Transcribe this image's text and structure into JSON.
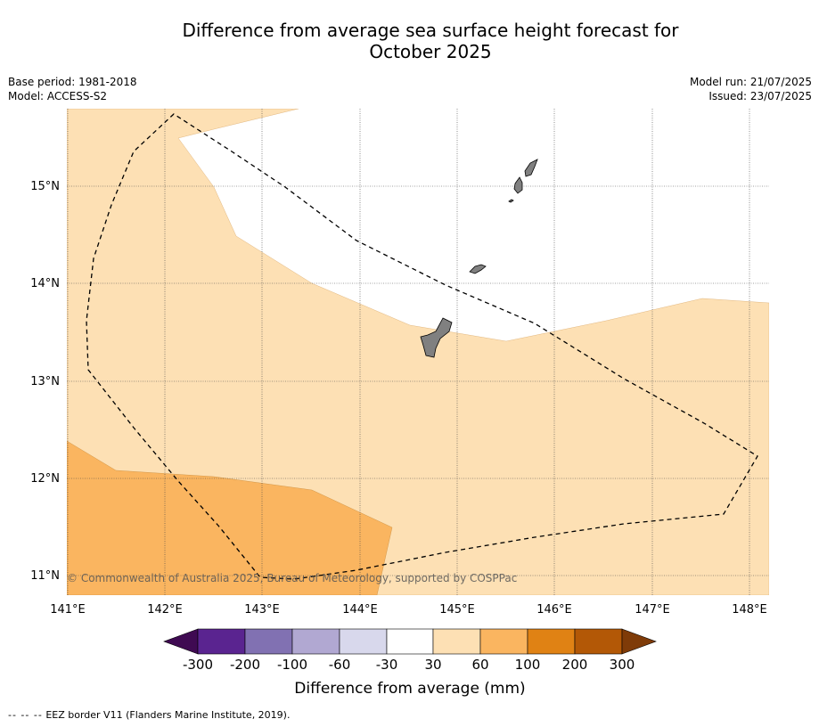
{
  "title": {
    "line1": "Difference from average sea surface height forecast for",
    "line2": "October 2025"
  },
  "meta": {
    "base_period": "Base period: 1981-2018",
    "model": "Model: ACCESS-S2",
    "model_run": "Model run: 21/07/2025",
    "issued": "Issued: 23/07/2025"
  },
  "map": {
    "lat_labels": [
      "15°N",
      "14°N",
      "13°N",
      "12°N",
      "11°N"
    ],
    "lon_labels": [
      "141°E",
      "142°E",
      "143°E",
      "144°E",
      "145°E",
      "146°E",
      "147°E",
      "148°E"
    ],
    "copyright": "© Commonwealth of Australia 2025, Bureau of Meteorology, supported by COSPPac",
    "region_colors": {
      "30_to_60": "#fde0b4",
      "60_to_100": "#fab560",
      "land": "#808080"
    }
  },
  "colorbar": {
    "label": "Difference from average (mm)",
    "ticks": [
      "-300",
      "-200",
      "-100",
      "-60",
      "-30",
      "30",
      "60",
      "100",
      "200",
      "300"
    ],
    "colors": [
      "#3f0a52",
      "#5a2490",
      "#8171b2",
      "#b1a8d2",
      "#d8d8ec",
      "#ffffff",
      "#fde0b4",
      "#fab560",
      "#e08214",
      "#b35806",
      "#7f3b08"
    ]
  },
  "footnote": {
    "dash": "-- -- --",
    "text": "EEZ border V11 (Flanders Marine Institute, 2019)."
  }
}
